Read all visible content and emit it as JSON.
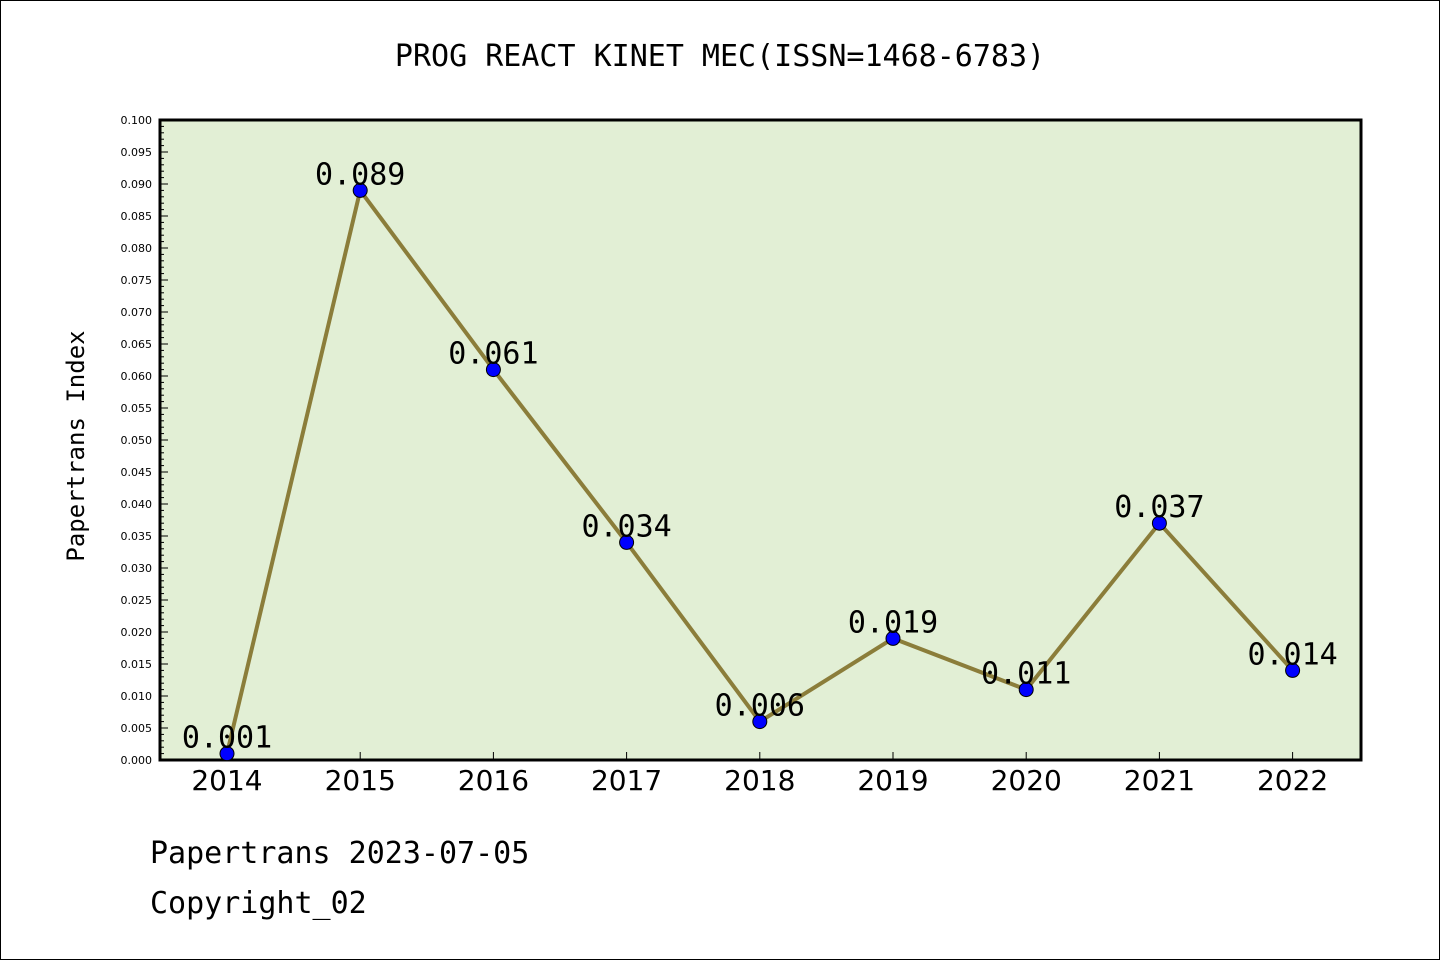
{
  "chart_data": {
    "type": "line",
    "title": "PROG REACT KINET MEC(ISSN=1468-6783)",
    "ylabel": "Papertrans Index",
    "xlabel": "",
    "categories": [
      "2014",
      "2015",
      "2016",
      "2017",
      "2018",
      "2019",
      "2020",
      "2021",
      "2022"
    ],
    "values": [
      0.001,
      0.089,
      0.061,
      0.034,
      0.006,
      0.019,
      0.011,
      0.037,
      0.014
    ],
    "data_labels": [
      "0.001",
      "0.089",
      "0.061",
      "0.034",
      "0.006",
      "0.019",
      "0.011",
      "0.037",
      "0.014"
    ],
    "ylim": [
      0,
      0.1
    ],
    "y_ticks": [
      "0.000",
      "0.005",
      "0.010",
      "0.015",
      "0.020",
      "0.025",
      "0.030",
      "0.035",
      "0.040",
      "0.045",
      "0.050",
      "0.055",
      "0.060",
      "0.065",
      "0.070",
      "0.075",
      "0.080",
      "0.085",
      "0.090",
      "0.095",
      "0.100"
    ],
    "grid": false,
    "line_color": "#8b7d3a",
    "marker_color": "#0000ff",
    "plot_background": "#e2efd5"
  },
  "footer": {
    "line1": "Papertrans 2023-07-05",
    "line2": "Copyright_02"
  }
}
